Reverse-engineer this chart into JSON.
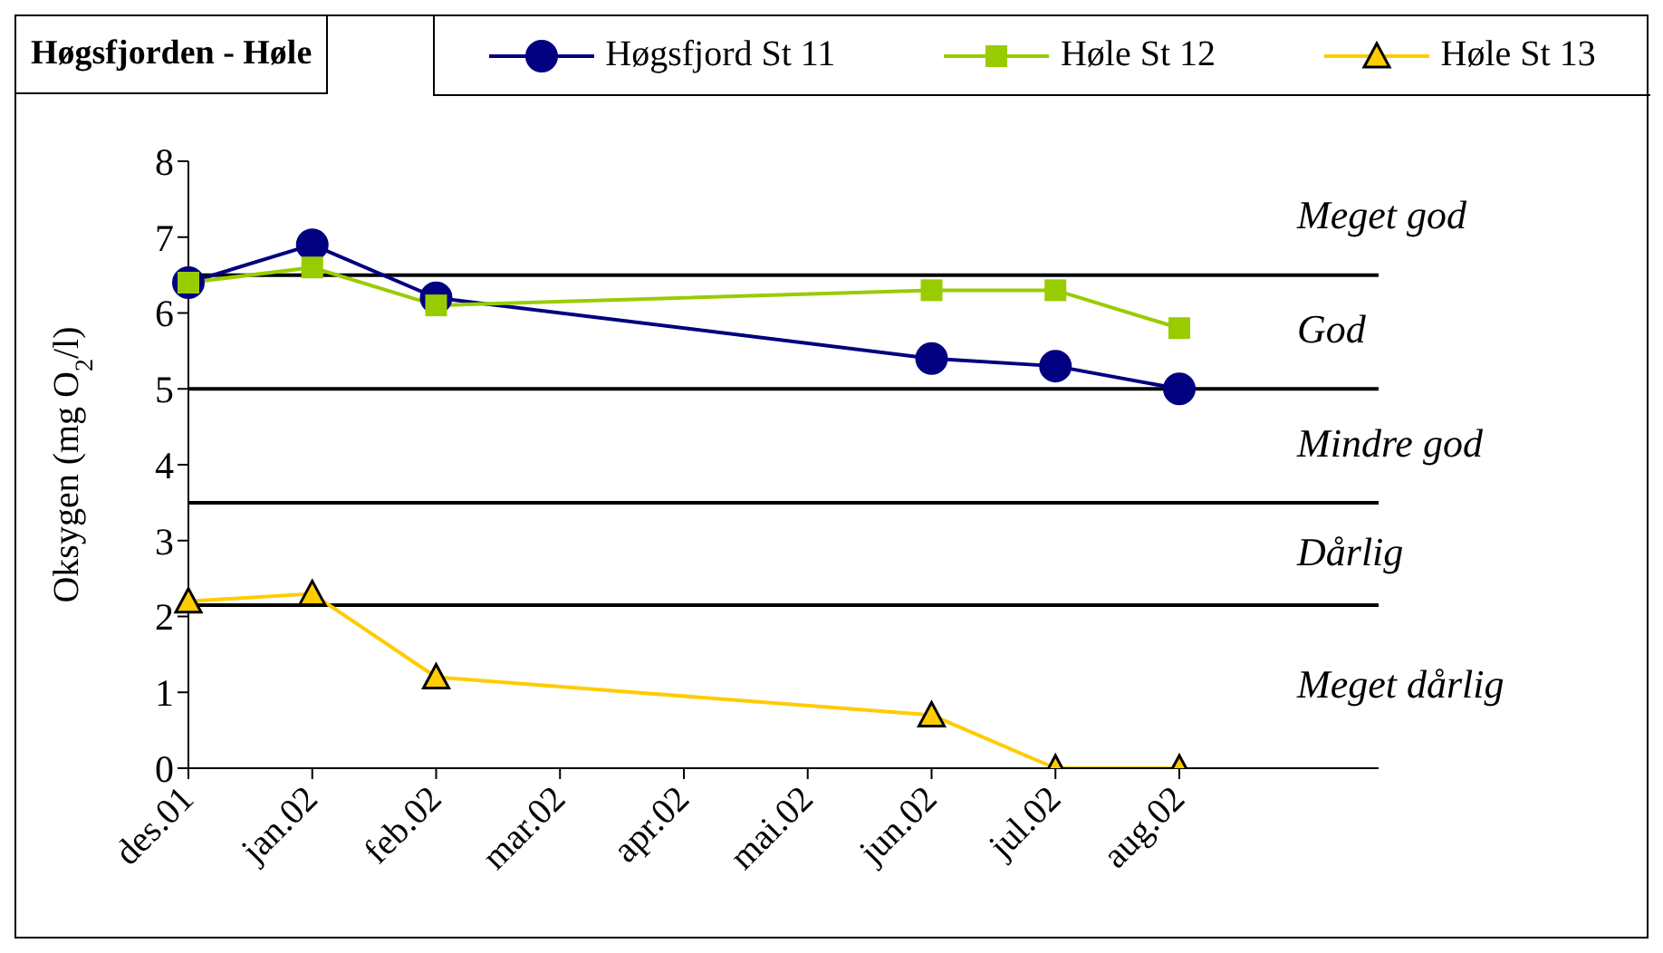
{
  "chart_data": {
    "type": "line",
    "title": "Høgsfjorden - Høle",
    "ylabel": "Oksygen (mg O$_{2}$/l)",
    "categories": [
      "des.01",
      "jan.02",
      "feb.02",
      "mar.02",
      "apr.02",
      "mai.02",
      "jun.02",
      "jul.02",
      "aug.02"
    ],
    "series": [
      {
        "name": "Høgsfjord St 11",
        "color": "#000080",
        "marker": "circle",
        "values": [
          6.4,
          6.9,
          6.2,
          null,
          null,
          null,
          5.4,
          5.3,
          5.0
        ]
      },
      {
        "name": "Høle St 12",
        "color": "#99cc00",
        "marker": "square",
        "values": [
          6.4,
          6.6,
          6.1,
          null,
          null,
          null,
          6.3,
          6.3,
          5.8
        ]
      },
      {
        "name": "Høle St 13",
        "color": "#ffcc00",
        "marker": "triangle",
        "values": [
          2.2,
          2.3,
          1.2,
          null,
          null,
          null,
          0.7,
          0,
          0
        ]
      }
    ],
    "ylim": [
      0,
      8
    ],
    "yticks": [
      0,
      1,
      2,
      3,
      4,
      5,
      6,
      7,
      8
    ],
    "grid": false,
    "legend": "top",
    "ref_lines": [
      {
        "axis": "y",
        "value": 6.5,
        "color": "#000000"
      },
      {
        "axis": "y",
        "value": 5,
        "color": "#000000"
      },
      {
        "axis": "y",
        "value": 3.5,
        "color": "#000000"
      },
      {
        "axis": "y",
        "value": 2.15,
        "color": "#000000"
      }
    ],
    "annotations": [
      "Meget god",
      "God",
      "Mindre god",
      "Dårlig",
      "Meget dårlig"
    ]
  }
}
